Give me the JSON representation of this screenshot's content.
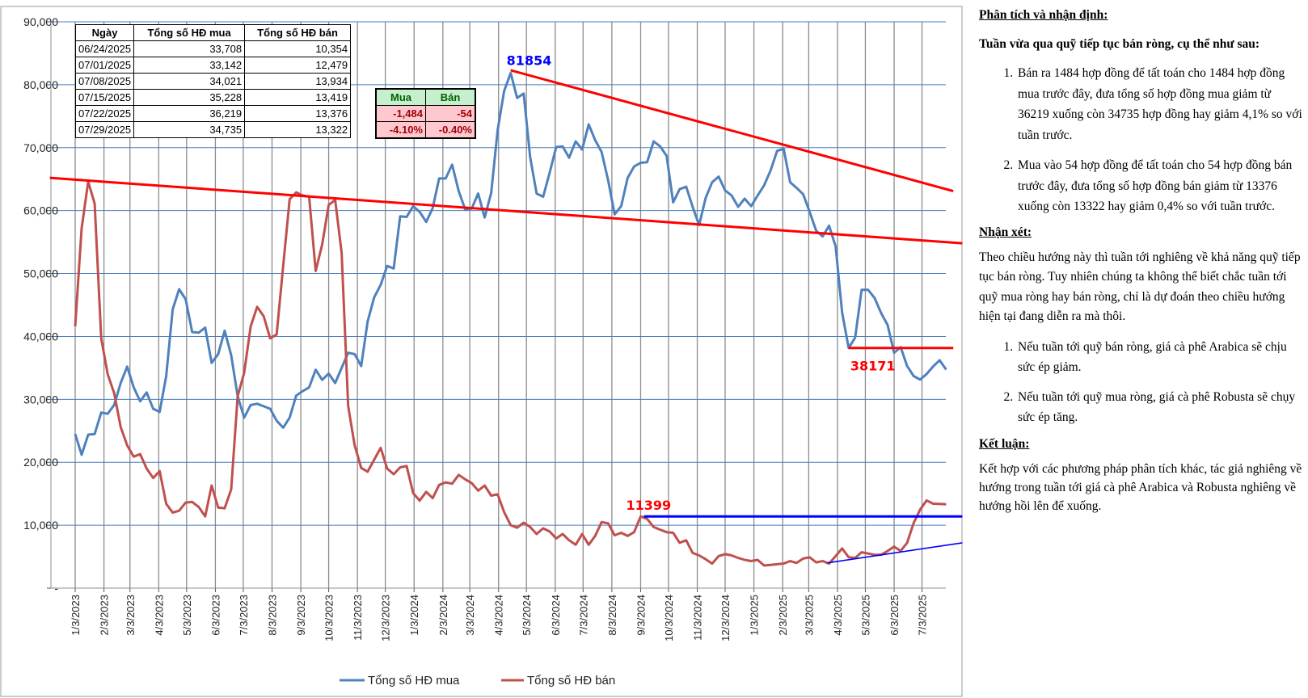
{
  "chart_data": {
    "type": "line",
    "title": "",
    "xlabel": "",
    "ylabel": "",
    "ylim": [
      0,
      90000
    ],
    "y_ticks": [
      "-",
      "10,000",
      "20,000",
      "30,000",
      "40,000",
      "50,000",
      "60,000",
      "70,000",
      "80,000",
      "90,000"
    ],
    "grid": true,
    "legend_placement": "bottom",
    "x_start": "1/3/2023",
    "x_interval": "weekly",
    "x_tick_labels": [
      "1/3/2023",
      "2/3/2023",
      "3/3/2023",
      "4/3/2023",
      "5/3/2023",
      "6/3/2023",
      "7/3/2023",
      "8/3/2023",
      "9/3/2023",
      "10/3/2023",
      "11/3/2023",
      "12/3/2023",
      "1/3/2024",
      "2/3/2024",
      "3/3/2024",
      "4/3/2024",
      "5/3/2024",
      "6/3/2024",
      "7/3/2024",
      "8/3/2024",
      "9/3/2024",
      "10/3/2024",
      "11/3/2024",
      "12/3/2024",
      "1/3/2025",
      "2/3/2025",
      "3/3/2025",
      "4/3/2025",
      "5/3/2025",
      "6/3/2025",
      "7/3/2025"
    ],
    "series": [
      {
        "name": "Tổng số HĐ mua",
        "color": "#4f81bd",
        "values": [
          24500,
          21200,
          24400,
          24500,
          27900,
          27700,
          29100,
          32600,
          35200,
          31900,
          29700,
          31100,
          28500,
          28000,
          33700,
          44300,
          47500,
          45900,
          40700,
          40600,
          41400,
          35800,
          37200,
          40900,
          37000,
          30500,
          27100,
          29100,
          29300,
          28900,
          28500,
          26600,
          25500,
          27100,
          30600,
          31300,
          31900,
          34700,
          33100,
          34100,
          32600,
          35000,
          37400,
          37200,
          35300,
          42400,
          46200,
          48200,
          51200,
          50800,
          59100,
          59000,
          60700,
          59800,
          58200,
          60400,
          65100,
          65100,
          67300,
          63100,
          60200,
          60300,
          62700,
          58900,
          62800,
          72800,
          79000,
          81854,
          77900,
          78600,
          68500,
          62700,
          62200,
          66000,
          70100,
          70200,
          68400,
          71000,
          69700,
          73700,
          71200,
          69300,
          64800,
          59400,
          60700,
          65200,
          67000,
          67600,
          67700,
          71000,
          70200,
          68700,
          61300,
          63400,
          63800,
          60600,
          57700,
          62000,
          64500,
          65400,
          63200,
          62400,
          60600,
          61900,
          60700,
          62400,
          64000,
          66400,
          69500,
          69800,
          64500,
          63600,
          62600,
          59800,
          56800,
          55900,
          57600,
          54300,
          43800,
          38171,
          39800,
          47400,
          47400,
          46100,
          43700,
          41800,
          37400,
          38300,
          35300,
          33708,
          33142,
          34021,
          35228,
          36219,
          34735
        ]
      },
      {
        "name": "Tổng số HĐ bán",
        "color": "#c0504d",
        "values": [
          41600,
          57200,
          64600,
          61100,
          39700,
          34000,
          31000,
          25600,
          22700,
          20900,
          21300,
          19000,
          17500,
          18600,
          13400,
          12000,
          12300,
          13600,
          13700,
          12900,
          11400,
          16300,
          12800,
          12700,
          15700,
          30500,
          34200,
          41600,
          44700,
          43200,
          39700,
          40300,
          51200,
          61800,
          62900,
          62400,
          62200,
          50400,
          54600,
          60900,
          61700,
          53300,
          28900,
          22700,
          19100,
          18500,
          20400,
          22300,
          19000,
          18100,
          19200,
          19400,
          15100,
          13900,
          15300,
          14300,
          16400,
          16800,
          16600,
          18000,
          17300,
          16700,
          15500,
          16300,
          14700,
          14900,
          12100,
          10000,
          9600,
          10400,
          9700,
          8600,
          9500,
          9000,
          7900,
          8600,
          7600,
          6900,
          8600,
          6900,
          8300,
          10500,
          10300,
          8400,
          8800,
          8300,
          8900,
          11399,
          11000,
          9700,
          9300,
          8900,
          8800,
          7200,
          7600,
          5600,
          5200,
          4600,
          3900,
          5100,
          5400,
          5200,
          4800,
          4500,
          4300,
          4500,
          3600,
          3700,
          3800,
          3900,
          4300,
          4000,
          4700,
          4900,
          4100,
          4300,
          3900,
          5100,
          6300,
          4900,
          4800,
          5700,
          5500,
          5300,
          5300,
          5900,
          6600,
          5900,
          7200,
          10354,
          12479,
          13934,
          13419,
          13376,
          13322
        ]
      }
    ],
    "trendlines": [
      {
        "name": "long-term-support-line",
        "color": "#ff0000",
        "from": {
          "week": -3.9,
          "value": 65200
        },
        "to": {
          "week": 136.5,
          "value": 54800
        }
      },
      {
        "name": "downtrend-resistance-line",
        "color": "#ff0000",
        "from": {
          "week": 67,
          "value": 82300
        },
        "to": {
          "week": 135.1,
          "value": 63100
        }
      },
      {
        "name": "support-38171-line",
        "color": "#ff0000",
        "from": {
          "week": 119,
          "value": 38171
        },
        "to": {
          "week": 135.1,
          "value": 38171
        }
      },
      {
        "name": "resistance-11399-line",
        "color": "#0000ff",
        "from": {
          "week": 87.5,
          "value": 11399
        },
        "to": {
          "week": 136.5,
          "value": 11399
        }
      },
      {
        "name": "uptrend-support-line",
        "color": "#0000ff",
        "from": {
          "week": 115.7,
          "value": 4000
        },
        "to": {
          "week": 136.5,
          "value": 7200
        }
      }
    ],
    "annotations": [
      {
        "text": "81854",
        "color": "#0000ff",
        "week": 67,
        "value": 81854
      },
      {
        "text": "11399",
        "color": "#ff0000",
        "week": 87,
        "value": 11399
      },
      {
        "text": "38171",
        "color": "#ff0000",
        "week": 122,
        "value": 38171
      }
    ]
  },
  "table": {
    "headers": [
      "Ngày",
      "Tổng số HĐ mua",
      "Tổng số HĐ bán"
    ],
    "rows": [
      [
        "06/24/2025",
        "33,708",
        "10,354"
      ],
      [
        "07/01/2025",
        "33,142",
        "12,479"
      ],
      [
        "07/08/2025",
        "34,021",
        "13,934"
      ],
      [
        "07/15/2025",
        "35,228",
        "13,419"
      ],
      [
        "07/22/2025",
        "36,219",
        "13,376"
      ],
      [
        "07/29/2025",
        "34,735",
        "13,322"
      ]
    ]
  },
  "change_table": {
    "headers": [
      "Mua",
      "Bán"
    ],
    "abs": [
      "-1,484",
      "-54"
    ],
    "pct": [
      "-4.10%",
      "-0.40%"
    ]
  },
  "panel": {
    "title": "Phân tích và nhận định:",
    "lead": "Tuần vừa qua quỹ tiếp tục bán ròng, cụ thể như sau:",
    "items1": [
      "Bán ra 1484 hợp đồng để tất toán cho 1484 hợp đồng mua trước đây, đưa tổng số hợp đồng mua giảm từ 36219 xuống còn 34735 hợp đồng hay giảm 4,1% so với tuần trước.",
      "Mua vào 54 hợp đồng để tất toán cho 54 hợp đồng bán trước đây, đưa tổng số hợp đồng bán giảm từ 13376 xuống còn 13322 hay giảm 0,4% so với tuần trước."
    ],
    "remark_title": "Nhận xét:",
    "remark": "Theo chiều hướng này thì tuần tới nghiêng về khả năng quỹ tiếp tục bán ròng. Tuy nhiên chúng ta không thể biết chắc tuần tới quỹ mua ròng hay bán ròng, chỉ là dự đoán theo chiều hướng hiện tại đang diễn ra mà thôi.",
    "items2": [
      "Nếu tuần tới quỹ bán ròng, giá cà phê Arabica sẽ chịu sức ép giảm.",
      "Nếu tuần tới quỹ mua ròng, giá cà phê Robusta sẽ chụy sức ép tăng."
    ],
    "conclusion_title": "Kết luận:",
    "conclusion": "Kết hợp với các phương pháp phân tích khác, tác giả nghiêng về hướng trong tuần tới giá cà phê Arabica và Robusta nghiêng về hướng hồi lên để xuống."
  }
}
